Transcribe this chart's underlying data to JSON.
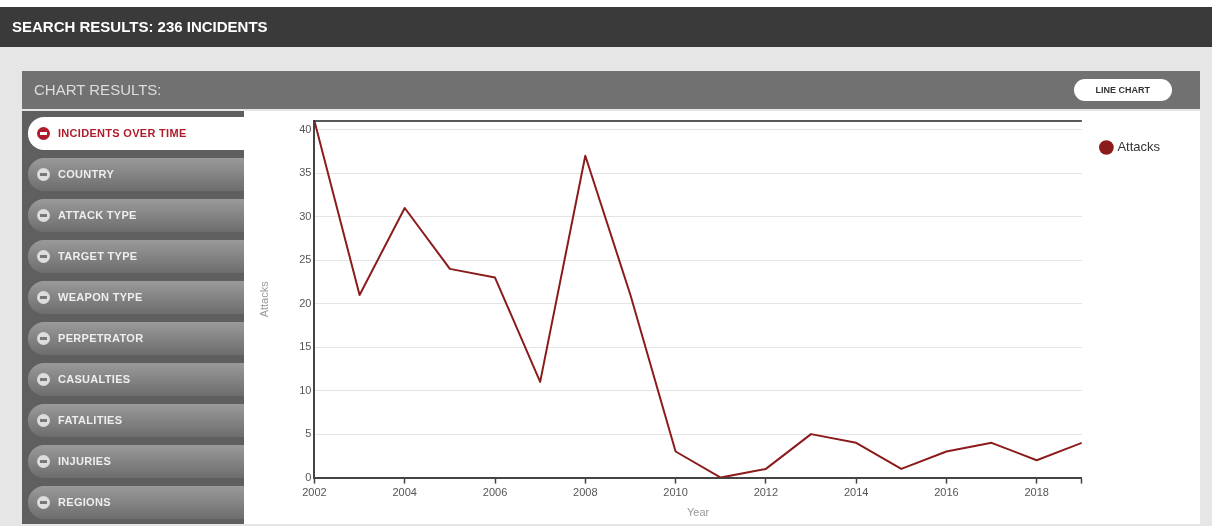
{
  "chart_data": {
    "type": "line",
    "title": "SEARCH RESULTS: 236 INCIDENTS",
    "subtitle": "CHART RESULTS:",
    "annotations": [
      "LINE CHART",
      "INCIDENTS OVER TIME",
      "COUNTRY",
      "ATTACK TYPE",
      "TARGET TYPE",
      "WEAPON TYPE",
      "PERPETRATOR",
      "CASUALTIES",
      "FATALITIES",
      "INJURIES",
      "REGIONS"
    ],
    "xlabel": "Year",
    "ylabel": "Attacks",
    "x": [
      2002,
      2003,
      2004,
      2005,
      2006,
      2007,
      2008,
      2009,
      2010,
      2011,
      2012,
      2013,
      2014,
      2015,
      2016,
      2017,
      2018,
      2019
    ],
    "series": [
      {
        "name": "Attacks",
        "color": "#8b1c1c",
        "values": [
          41,
          21,
          31,
          24,
          23,
          11,
          37,
          21,
          3,
          0,
          1,
          5,
          4,
          1,
          3,
          4,
          2,
          4
        ]
      }
    ],
    "xlim": [
      2002,
      2019
    ],
    "xticks": [
      2002,
      2004,
      2006,
      2008,
      2010,
      2012,
      2014,
      2016,
      2018,
      {
        "value": 2019,
        "label": null
      }
    ],
    "ylim": [
      0,
      41
    ],
    "yticks": [
      0,
      5,
      10,
      15,
      20,
      25,
      30,
      35,
      40
    ],
    "grid": "y",
    "legend": "top right"
  }
}
